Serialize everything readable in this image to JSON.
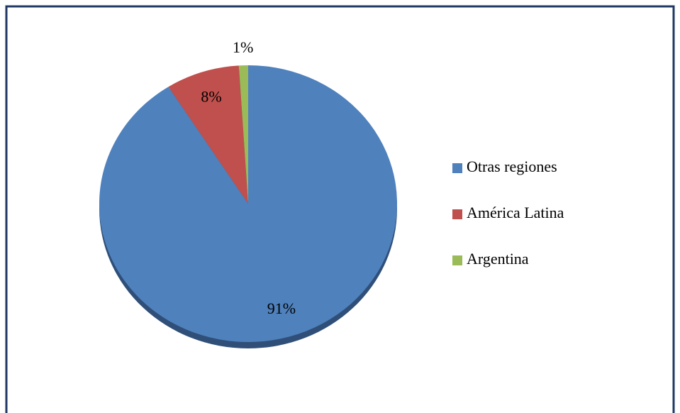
{
  "chart_data": {
    "type": "pie",
    "categories": [
      "Otras regiones",
      "América Latina",
      "Argentina"
    ],
    "values": [
      91,
      8,
      1
    ],
    "value_labels": [
      "91%",
      "8%",
      "1%"
    ],
    "colors": [
      "#4f81bd",
      "#c0504d",
      "#9bbb59"
    ],
    "legend": "right"
  }
}
